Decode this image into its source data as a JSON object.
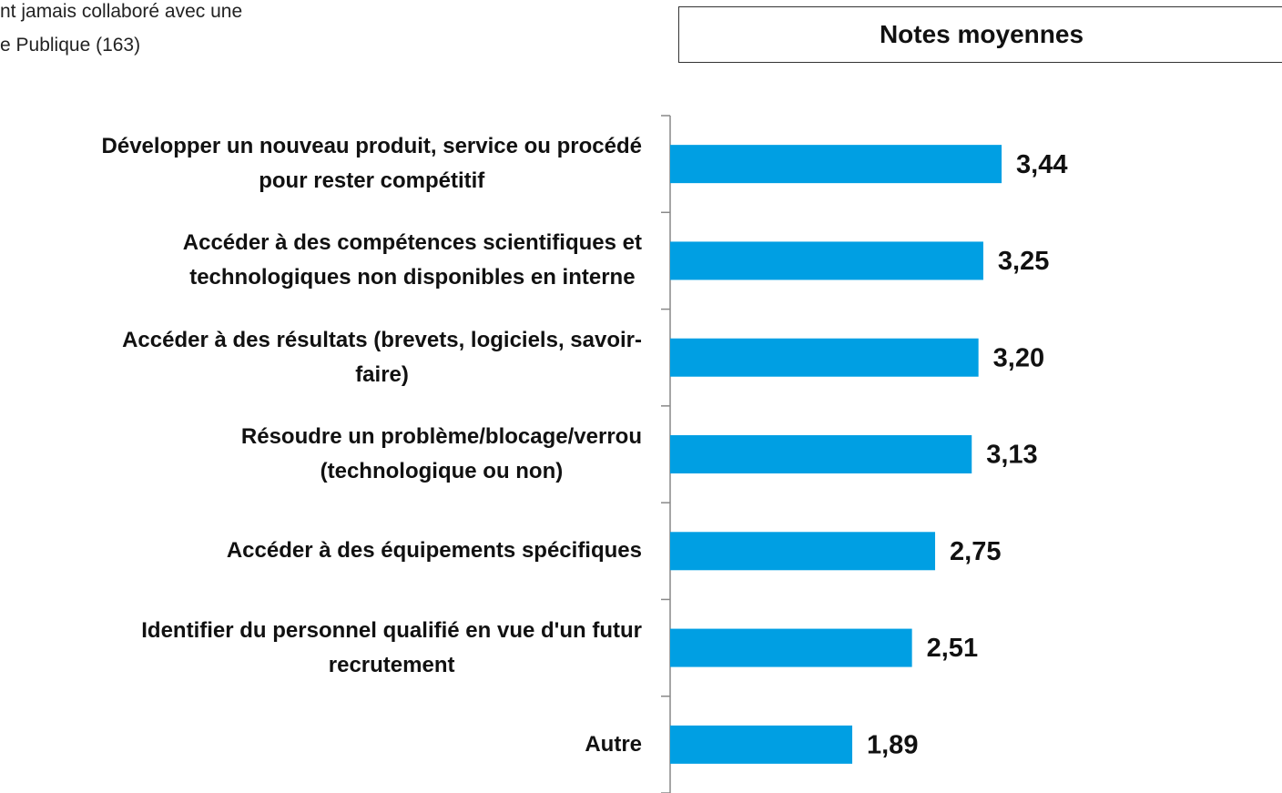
{
  "chart_data": {
    "type": "bar",
    "orientation": "horizontal",
    "subtitle_lines": [
      "nt jamais collaboré avec une",
      "e Publique (163)"
    ],
    "title": "Notes moyennes",
    "categories": [
      "Développer un nouveau produit, service ou procédé\npour rester compétitif",
      "Accéder à des compétences scientifiques et\ntechnologiques non disponibles en interne",
      "Accéder à des résultats (brevets, logiciels, savoir-\nfaire)",
      "Résoudre un problème/blocage/verrou\n(technologique ou non)",
      "Accéder à des équipements spécifiques",
      "Identifier du personnel qualifié en vue d'un futur\nrecrutement",
      "Autre"
    ],
    "values": [
      3.44,
      3.25,
      3.2,
      3.13,
      2.75,
      2.51,
      1.89
    ],
    "value_labels": [
      "3,44",
      "3,25",
      "3,20",
      "3,13",
      "2,75",
      "2,51",
      "1,89"
    ],
    "color": "#009fe3",
    "xlim": [
      0,
      6.35
    ]
  }
}
